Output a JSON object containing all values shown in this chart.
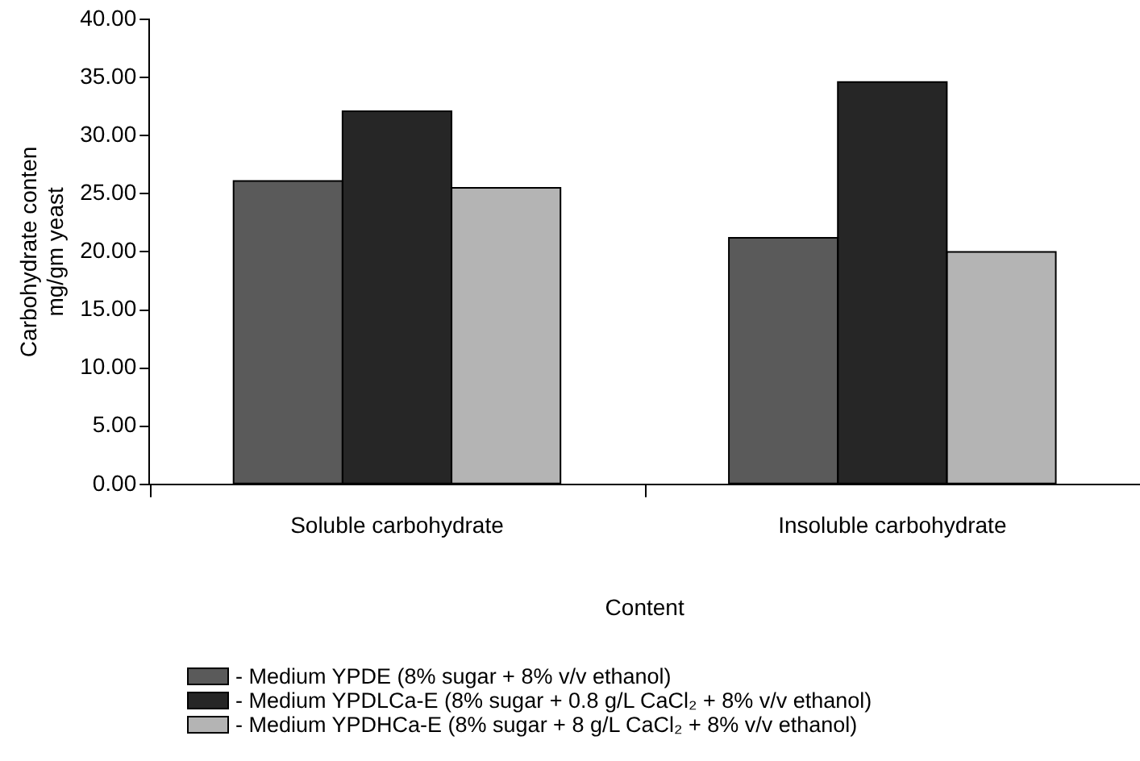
{
  "chart_data": {
    "type": "bar",
    "xlabel": "Content",
    "ylabel": "Carbohydrate conten\nmg/gm yeast",
    "categories": [
      "Soluble carbohydrate",
      "Insoluble carbohydrate"
    ],
    "series": [
      {
        "name": "- Medium YPDE (8% sugar + 8% v/v ethanol)",
        "color": "#5a5a5a",
        "values": [
          26.1,
          21.2
        ]
      },
      {
        "name": "- Medium YPDLCa-E (8% sugar + 0.8 g/L CaCl₂ + 8% v/v ethanol)",
        "color": "#262626",
        "values": [
          32.1,
          34.6
        ]
      },
      {
        "name": "- Medium YPDHCa-E (8% sugar + 8 g/L CaCl₂ + 8% v/v ethanol)",
        "color": "#b4b4b4",
        "values": [
          25.5,
          20.0
        ]
      }
    ],
    "ylim": [
      0,
      40
    ],
    "yticks": [
      {
        "value": 0,
        "label": "0.00"
      },
      {
        "value": 5,
        "label": "5.00"
      },
      {
        "value": 10,
        "label": "10.00"
      },
      {
        "value": 15,
        "label": "15.00"
      },
      {
        "value": 20,
        "label": "20.00"
      },
      {
        "value": 25,
        "label": "25.00"
      },
      {
        "value": 30,
        "label": "30.00"
      },
      {
        "value": 35,
        "label": "35.00"
      },
      {
        "value": 40,
        "label": "40.00"
      }
    ],
    "grid": false,
    "legend": "bottom"
  }
}
